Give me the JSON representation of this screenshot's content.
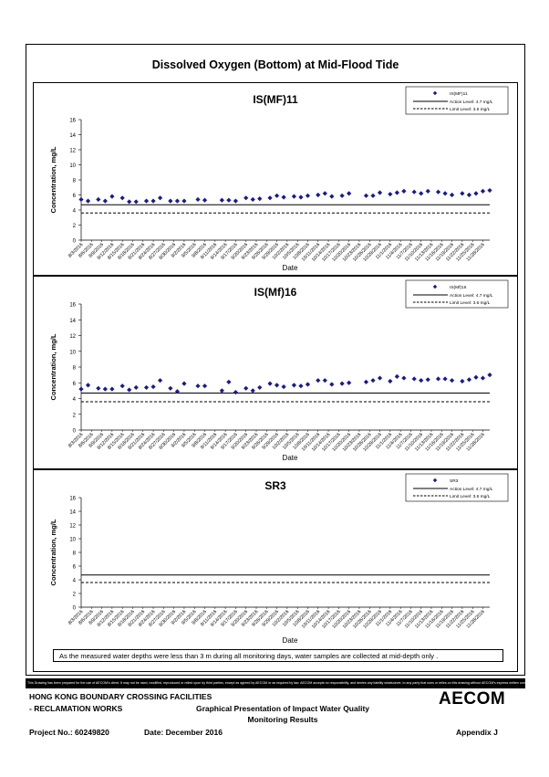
{
  "page": {
    "main_title": "Dissolved Oxygen (Bottom) at Mid-Flood Tide",
    "note": "As the measured water depths were less than 3 m during all monitoring days, water samples are collected  at mid-depth only .",
    "disclaimer": "This Drawing has been prepared for the use of AECOM's client. It may not be used, modified, reproduced or relied upon by third parties, except as agreed by AECOM or as required by law. AECOM accepts no responsibility, and denies any liability whatsoever, to any party that uses or relies on this drawing without AECOM's express written consent.",
    "footer": {
      "org_line1": "HONG KONG BOUNDARY CROSSING FACILITIES",
      "org_line2": "- RECLAMATION WORKS",
      "title_line1": "Graphical Presentation of Impact Water Quality",
      "title_line2": "Monitoring Results",
      "project": "Project No.: 60249820",
      "date": "Date: December 2016",
      "appendix": "Appendix J",
      "logo": "AECOM"
    }
  },
  "chart_data": [
    {
      "type": "scatter",
      "title": "IS(MF)11",
      "xlabel": "Date",
      "ylabel": "Concentration, mg/L",
      "ylim": [
        0,
        16
      ],
      "yticks": [
        0,
        2,
        4,
        6,
        8,
        10,
        12,
        14,
        16
      ],
      "x_tick_labels": [
        "8/3/2016",
        "8/6/2016",
        "8/9/2016",
        "8/12/2016",
        "8/15/2016",
        "8/18/2016",
        "8/21/2016",
        "8/24/2016",
        "8/27/2016",
        "8/30/2016",
        "9/2/2016",
        "9/5/2016",
        "9/8/2016",
        "9/11/2016",
        "9/14/2016",
        "9/17/2016",
        "9/20/2016",
        "9/23/2016",
        "9/26/2016",
        "9/29/2016",
        "10/2/2016",
        "10/5/2016",
        "10/8/2016",
        "10/11/2016",
        "10/14/2016",
        "10/17/2016",
        "10/20/2016",
        "10/23/2016",
        "10/26/2016",
        "10/29/2016",
        "11/1/2016",
        "11/4/2016",
        "11/7/2016",
        "11/10/2016",
        "11/13/2016",
        "11/16/2016",
        "11/19/2016",
        "11/22/2016",
        "11/25/2016",
        "11/28/2016"
      ],
      "x_range": [
        "8/3/2016",
        "11/30/2016"
      ],
      "legend": {
        "position": "top-right",
        "series_label": "IS(MF)11",
        "action_label": "Action Level: 4.7 mg/L",
        "limit_label": "Limit Level: 3.6 mg/L"
      },
      "action_level": 4.7,
      "limit_level": 3.6,
      "points": [
        {
          "x": "8/3/2016",
          "y": 5.4
        },
        {
          "x": "8/5/2016",
          "y": 5.2
        },
        {
          "x": "8/8/2016",
          "y": 5.4
        },
        {
          "x": "8/10/2016",
          "y": 5.2
        },
        {
          "x": "8/12/2016",
          "y": 5.8
        },
        {
          "x": "8/15/2016",
          "y": 5.6
        },
        {
          "x": "8/17/2016",
          "y": 5.1
        },
        {
          "x": "8/19/2016",
          "y": 5.1
        },
        {
          "x": "8/22/2016",
          "y": 5.2
        },
        {
          "x": "8/24/2016",
          "y": 5.2
        },
        {
          "x": "8/26/2016",
          "y": 5.6
        },
        {
          "x": "8/29/2016",
          "y": 5.2
        },
        {
          "x": "8/31/2016",
          "y": 5.2
        },
        {
          "x": "9/2/2016",
          "y": 5.2
        },
        {
          "x": "9/6/2016",
          "y": 5.4
        },
        {
          "x": "9/8/2016",
          "y": 5.3
        },
        {
          "x": "9/13/2016",
          "y": 5.3
        },
        {
          "x": "9/15/2016",
          "y": 5.3
        },
        {
          "x": "9/17/2016",
          "y": 5.2
        },
        {
          "x": "9/20/2016",
          "y": 5.6
        },
        {
          "x": "9/22/2016",
          "y": 5.4
        },
        {
          "x": "9/24/2016",
          "y": 5.5
        },
        {
          "x": "9/27/2016",
          "y": 5.6
        },
        {
          "x": "9/29/2016",
          "y": 5.9
        },
        {
          "x": "10/1/2016",
          "y": 5.7
        },
        {
          "x": "10/4/2016",
          "y": 5.8
        },
        {
          "x": "10/6/2016",
          "y": 5.7
        },
        {
          "x": "10/8/2016",
          "y": 5.9
        },
        {
          "x": "10/11/2016",
          "y": 6.0
        },
        {
          "x": "10/13/2016",
          "y": 6.2
        },
        {
          "x": "10/15/2016",
          "y": 5.8
        },
        {
          "x": "10/18/2016",
          "y": 5.9
        },
        {
          "x": "10/20/2016",
          "y": 6.2
        },
        {
          "x": "10/25/2016",
          "y": 5.9
        },
        {
          "x": "10/27/2016",
          "y": 5.9
        },
        {
          "x": "10/29/2016",
          "y": 6.3
        },
        {
          "x": "11/1/2016",
          "y": 6.1
        },
        {
          "x": "11/3/2016",
          "y": 6.3
        },
        {
          "x": "11/5/2016",
          "y": 6.5
        },
        {
          "x": "11/8/2016",
          "y": 6.4
        },
        {
          "x": "11/10/2016",
          "y": 6.2
        },
        {
          "x": "11/12/2016",
          "y": 6.5
        },
        {
          "x": "11/15/2016",
          "y": 6.4
        },
        {
          "x": "11/17/2016",
          "y": 6.2
        },
        {
          "x": "11/19/2016",
          "y": 6.0
        },
        {
          "x": "11/22/2016",
          "y": 6.2
        },
        {
          "x": "11/24/2016",
          "y": 6.0
        },
        {
          "x": "11/26/2016",
          "y": 6.2
        },
        {
          "x": "11/28/2016",
          "y": 6.5
        },
        {
          "x": "11/30/2016",
          "y": 6.6
        }
      ]
    },
    {
      "type": "scatter",
      "title": "IS(Mf)16",
      "xlabel": "Date",
      "ylabel": "Concentration, mg/L",
      "ylim": [
        0,
        16
      ],
      "yticks": [
        0,
        2,
        4,
        6,
        8,
        10,
        12,
        14,
        16
      ],
      "x_tick_labels": [
        "8/3/2016",
        "8/6/2016",
        "8/9/2016",
        "8/12/2016",
        "8/15/2016",
        "8/18/2016",
        "8/21/2016",
        "8/24/2016",
        "8/27/2016",
        "8/30/2016",
        "9/2/2016",
        "9/5/2016",
        "9/8/2016",
        "9/11/2016",
        "9/14/2016",
        "9/17/2016",
        "9/20/2016",
        "9/23/2016",
        "9/26/2016",
        "9/29/2016",
        "10/2/2016",
        "10/5/2016",
        "10/8/2016",
        "10/11/2016",
        "10/14/2016",
        "10/17/2016",
        "10/20/2016",
        "10/23/2016",
        "10/26/2016",
        "10/29/2016",
        "11/1/2016",
        "11/4/2016",
        "11/7/2016",
        "11/10/2016",
        "11/13/2016",
        "11/16/2016",
        "11/19/2016",
        "11/22/2016",
        "11/25/2016",
        "11/28/2016"
      ],
      "x_range": [
        "8/3/2016",
        "11/30/2016"
      ],
      "legend": {
        "position": "top-right",
        "series_label": "IS(Mf)16",
        "action_label": "Action Level: 4.7 mg/L",
        "limit_label": "Limit Level: 3.6 mg/L"
      },
      "action_level": 4.7,
      "limit_level": 3.6,
      "points": [
        {
          "x": "8/3/2016",
          "y": 5.2
        },
        {
          "x": "8/5/2016",
          "y": 5.7
        },
        {
          "x": "8/8/2016",
          "y": 5.3
        },
        {
          "x": "8/10/2016",
          "y": 5.2
        },
        {
          "x": "8/12/2016",
          "y": 5.2
        },
        {
          "x": "8/15/2016",
          "y": 5.6
        },
        {
          "x": "8/17/2016",
          "y": 5.1
        },
        {
          "x": "8/19/2016",
          "y": 5.4
        },
        {
          "x": "8/22/2016",
          "y": 5.4
        },
        {
          "x": "8/24/2016",
          "y": 5.5
        },
        {
          "x": "8/26/2016",
          "y": 6.3
        },
        {
          "x": "8/29/2016",
          "y": 5.3
        },
        {
          "x": "8/31/2016",
          "y": 4.9
        },
        {
          "x": "9/2/2016",
          "y": 5.9
        },
        {
          "x": "9/6/2016",
          "y": 5.6
        },
        {
          "x": "9/8/2016",
          "y": 5.6
        },
        {
          "x": "9/13/2016",
          "y": 5.0
        },
        {
          "x": "9/15/2016",
          "y": 6.1
        },
        {
          "x": "9/17/2016",
          "y": 4.8
        },
        {
          "x": "9/20/2016",
          "y": 5.3
        },
        {
          "x": "9/22/2016",
          "y": 5.0
        },
        {
          "x": "9/24/2016",
          "y": 5.4
        },
        {
          "x": "9/27/2016",
          "y": 5.9
        },
        {
          "x": "9/29/2016",
          "y": 5.7
        },
        {
          "x": "10/1/2016",
          "y": 5.5
        },
        {
          "x": "10/4/2016",
          "y": 5.7
        },
        {
          "x": "10/6/2016",
          "y": 5.6
        },
        {
          "x": "10/8/2016",
          "y": 5.8
        },
        {
          "x": "10/11/2016",
          "y": 6.3
        },
        {
          "x": "10/13/2016",
          "y": 6.3
        },
        {
          "x": "10/15/2016",
          "y": 5.8
        },
        {
          "x": "10/18/2016",
          "y": 5.9
        },
        {
          "x": "10/20/2016",
          "y": 6.0
        },
        {
          "x": "10/25/2016",
          "y": 6.1
        },
        {
          "x": "10/27/2016",
          "y": 6.3
        },
        {
          "x": "10/29/2016",
          "y": 6.6
        },
        {
          "x": "11/1/2016",
          "y": 6.2
        },
        {
          "x": "11/3/2016",
          "y": 6.8
        },
        {
          "x": "11/5/2016",
          "y": 6.6
        },
        {
          "x": "11/8/2016",
          "y": 6.5
        },
        {
          "x": "11/10/2016",
          "y": 6.3
        },
        {
          "x": "11/12/2016",
          "y": 6.4
        },
        {
          "x": "11/15/2016",
          "y": 6.5
        },
        {
          "x": "11/17/2016",
          "y": 6.5
        },
        {
          "x": "11/19/2016",
          "y": 6.3
        },
        {
          "x": "11/22/2016",
          "y": 6.2
        },
        {
          "x": "11/24/2016",
          "y": 6.4
        },
        {
          "x": "11/26/2016",
          "y": 6.7
        },
        {
          "x": "11/28/2016",
          "y": 6.6
        },
        {
          "x": "11/30/2016",
          "y": 7.0
        }
      ]
    },
    {
      "type": "scatter",
      "title": "SR3",
      "xlabel": "Date",
      "ylabel": "Concentration, mg/L",
      "ylim": [
        0,
        16
      ],
      "yticks": [
        0,
        2,
        4,
        6,
        8,
        10,
        12,
        14,
        16
      ],
      "x_tick_labels": [
        "8/3/2016",
        "8/6/2016",
        "8/9/2016",
        "8/12/2016",
        "8/15/2016",
        "8/18/2016",
        "8/21/2016",
        "8/24/2016",
        "8/27/2016",
        "8/30/2016",
        "9/2/2016",
        "9/5/2016",
        "9/8/2016",
        "9/11/2016",
        "9/14/2016",
        "9/17/2016",
        "9/20/2016",
        "9/23/2016",
        "9/26/2016",
        "9/29/2016",
        "10/2/2016",
        "10/5/2016",
        "10/8/2016",
        "10/11/2016",
        "10/14/2016",
        "10/17/2016",
        "10/20/2016",
        "10/23/2016",
        "10/26/2016",
        "10/29/2016",
        "11/1/2016",
        "11/4/2016",
        "11/7/2016",
        "11/10/2016",
        "11/13/2016",
        "11/16/2016",
        "11/19/2016",
        "11/22/2016",
        "11/25/2016",
        "11/28/2016"
      ],
      "x_range": [
        "8/3/2016",
        "11/30/2016"
      ],
      "legend": {
        "position": "top-right",
        "series_label": "SR3",
        "action_label": "Action Level: 4.7 mg/L",
        "limit_label": "Limit Level: 3.6 mg/L"
      },
      "action_level": 4.7,
      "limit_level": 3.6,
      "points": []
    }
  ]
}
